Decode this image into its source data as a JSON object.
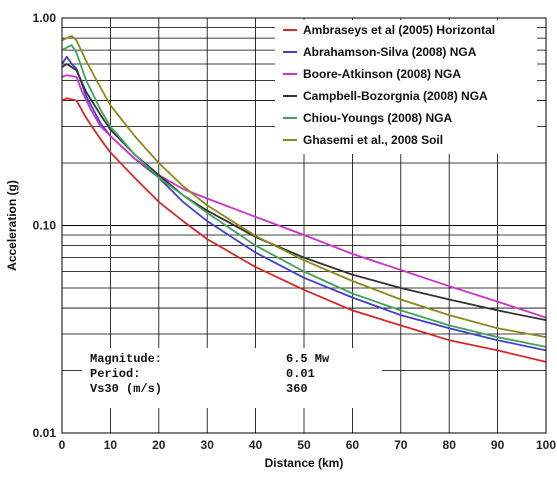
{
  "chart_data": {
    "type": "line",
    "xlabel": "Distance (km)",
    "ylabel": "Acceleration (g)",
    "xlim": [
      0,
      100
    ],
    "ylim": [
      0.01,
      1.0
    ],
    "yscale": "log",
    "grid": true,
    "legend_position": "top-right",
    "x_ticks": [
      0,
      10,
      20,
      30,
      40,
      50,
      60,
      70,
      80,
      90,
      100
    ],
    "x_tick_labels": [
      "0",
      "10",
      "20",
      "30",
      "40",
      "50",
      "60",
      "70",
      "80",
      "90",
      "100"
    ],
    "y_ticks": [
      0.01,
      0.1,
      1.0
    ],
    "y_tick_labels": [
      "0.01",
      "0.10",
      "1.00"
    ],
    "series": [
      {
        "name": "Ambraseys et al (2005) Horizontal",
        "color": "#d62828",
        "x": [
          0,
          1,
          3,
          5,
          8,
          10,
          15,
          20,
          25,
          30,
          40,
          50,
          60,
          70,
          80,
          90,
          100
        ],
        "y": [
          0.4,
          0.41,
          0.4,
          0.33,
          0.26,
          0.225,
          0.17,
          0.13,
          0.105,
          0.086,
          0.063,
          0.049,
          0.039,
          0.033,
          0.028,
          0.025,
          0.022
        ]
      },
      {
        "name": "Abrahamson-Silva (2008) NGA",
        "color": "#4040cc",
        "x": [
          0,
          1,
          2,
          3,
          5,
          8,
          10,
          15,
          20,
          25,
          30,
          40,
          50,
          60,
          70,
          80,
          90,
          100
        ],
        "y": [
          0.6,
          0.65,
          0.6,
          0.57,
          0.42,
          0.31,
          0.27,
          0.21,
          0.17,
          0.13,
          0.105,
          0.074,
          0.056,
          0.045,
          0.037,
          0.032,
          0.028,
          0.025
        ]
      },
      {
        "name": "Boore-Atkinson (2008) NGA",
        "color": "#cc33cc",
        "x": [
          0,
          1,
          3,
          4,
          6,
          8,
          10,
          15,
          20,
          25,
          30,
          40,
          50,
          60,
          70,
          80,
          90,
          100
        ],
        "y": [
          0.52,
          0.53,
          0.52,
          0.45,
          0.36,
          0.3,
          0.27,
          0.21,
          0.175,
          0.15,
          0.135,
          0.11,
          0.09,
          0.073,
          0.061,
          0.051,
          0.043,
          0.036
        ]
      },
      {
        "name": "Campbell-Bozorgnia (2008) NGA",
        "color": "#333333",
        "x": [
          0,
          1,
          3,
          5,
          8,
          10,
          15,
          20,
          25,
          30,
          40,
          50,
          60,
          70,
          80,
          90,
          100
        ],
        "y": [
          0.58,
          0.6,
          0.56,
          0.44,
          0.34,
          0.29,
          0.22,
          0.175,
          0.14,
          0.118,
          0.088,
          0.07,
          0.058,
          0.05,
          0.044,
          0.039,
          0.035
        ]
      },
      {
        "name": "Chiou-Youngs (2008) NGA",
        "color": "#3da55a",
        "x": [
          0,
          1,
          2,
          3,
          5,
          8,
          10,
          15,
          20,
          25,
          30,
          40,
          50,
          60,
          70,
          80,
          90,
          100
        ],
        "y": [
          0.7,
          0.72,
          0.74,
          0.68,
          0.5,
          0.36,
          0.3,
          0.22,
          0.17,
          0.14,
          0.115,
          0.08,
          0.06,
          0.047,
          0.039,
          0.033,
          0.029,
          0.026
        ]
      },
      {
        "name": "Ghasemi et al., 2008 Soil",
        "color": "#8a8a1a",
        "x": [
          0,
          1,
          2,
          3,
          5,
          8,
          10,
          15,
          20,
          25,
          30,
          40,
          50,
          60,
          70,
          80,
          90,
          100
        ],
        "y": [
          0.78,
          0.8,
          0.82,
          0.78,
          0.62,
          0.46,
          0.38,
          0.27,
          0.2,
          0.155,
          0.125,
          0.089,
          0.068,
          0.054,
          0.044,
          0.037,
          0.032,
          0.029
        ]
      }
    ],
    "annotations": [
      {
        "label": "Magnitude:",
        "value": "6.5 Mw"
      },
      {
        "label": "Period:",
        "value": "0.01"
      },
      {
        "label": "Vs30 (m/s)",
        "value": "360"
      }
    ]
  }
}
